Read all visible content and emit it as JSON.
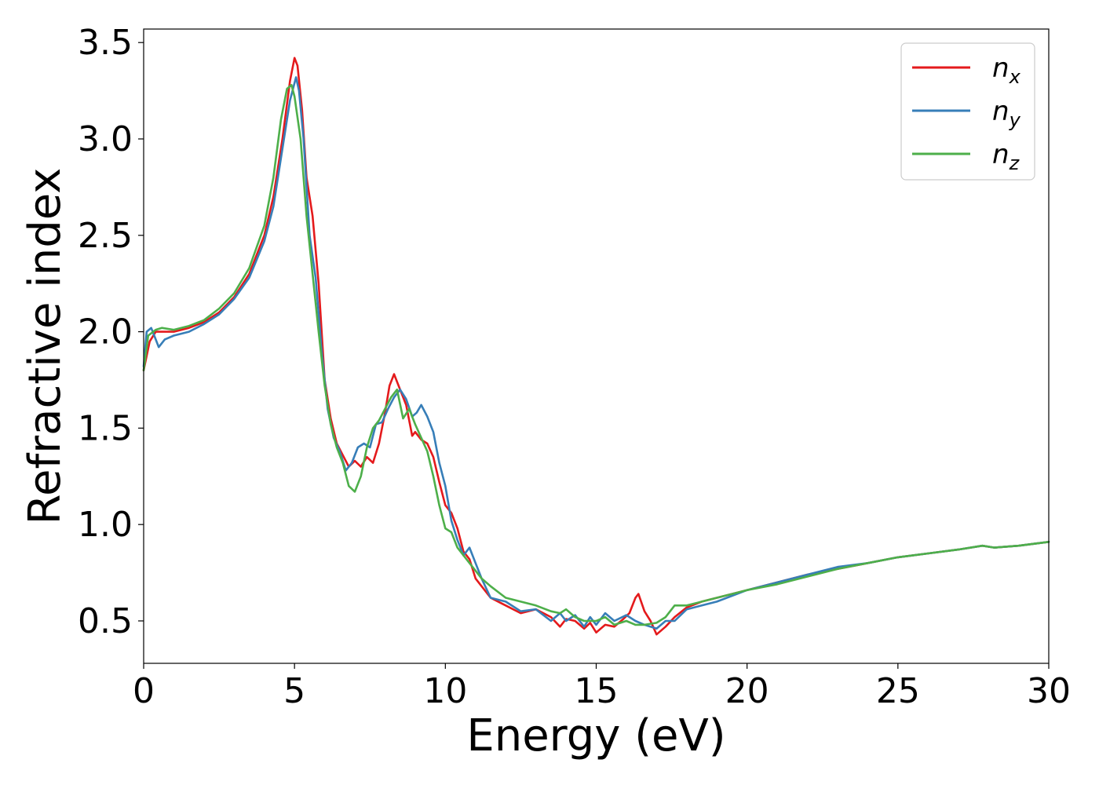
{
  "chart_data": {
    "type": "line",
    "title": "",
    "xlabel": "Energy (eV)",
    "ylabel": "Refractive index",
    "xlim": [
      0,
      30
    ],
    "ylim": [
      0.28,
      3.57
    ],
    "xticks": [
      0,
      5,
      10,
      15,
      20,
      25,
      30
    ],
    "yticks": [
      0.5,
      1.0,
      1.5,
      2.0,
      2.5,
      3.0,
      3.5
    ],
    "xtick_labels": [
      "0",
      "5",
      "10",
      "15",
      "20",
      "25",
      "30"
    ],
    "ytick_labels": [
      "0.5",
      "1.0",
      "1.5",
      "2.0",
      "2.5",
      "3.0",
      "3.5"
    ],
    "grid": false,
    "legend_position": "top-right",
    "series": [
      {
        "name": "n",
        "subscript": "x",
        "color": "#e41a1c",
        "points": [
          [
            0,
            1.8
          ],
          [
            0.2,
            1.95
          ],
          [
            0.4,
            2.0
          ],
          [
            0.6,
            2.0
          ],
          [
            1,
            2.0
          ],
          [
            1.5,
            2.02
          ],
          [
            2,
            2.05
          ],
          [
            2.5,
            2.1
          ],
          [
            3,
            2.18
          ],
          [
            3.5,
            2.3
          ],
          [
            4,
            2.5
          ],
          [
            4.3,
            2.7
          ],
          [
            4.6,
            3.0
          ],
          [
            4.85,
            3.3
          ],
          [
            5.0,
            3.42
          ],
          [
            5.1,
            3.38
          ],
          [
            5.25,
            3.15
          ],
          [
            5.4,
            2.8
          ],
          [
            5.6,
            2.6
          ],
          [
            5.8,
            2.25
          ],
          [
            6.0,
            1.75
          ],
          [
            6.2,
            1.55
          ],
          [
            6.4,
            1.42
          ],
          [
            6.6,
            1.36
          ],
          [
            6.8,
            1.3
          ],
          [
            7.0,
            1.33
          ],
          [
            7.2,
            1.3
          ],
          [
            7.4,
            1.35
          ],
          [
            7.6,
            1.32
          ],
          [
            7.8,
            1.42
          ],
          [
            8.0,
            1.58
          ],
          [
            8.15,
            1.72
          ],
          [
            8.3,
            1.78
          ],
          [
            8.5,
            1.7
          ],
          [
            8.7,
            1.62
          ],
          [
            8.9,
            1.46
          ],
          [
            9.0,
            1.48
          ],
          [
            9.2,
            1.44
          ],
          [
            9.4,
            1.42
          ],
          [
            9.6,
            1.35
          ],
          [
            9.8,
            1.22
          ],
          [
            10.0,
            1.1
          ],
          [
            10.2,
            1.06
          ],
          [
            10.4,
            0.98
          ],
          [
            10.6,
            0.86
          ],
          [
            10.8,
            0.82
          ],
          [
            11.0,
            0.72
          ],
          [
            11.2,
            0.68
          ],
          [
            11.5,
            0.62
          ],
          [
            12.0,
            0.58
          ],
          [
            12.5,
            0.54
          ],
          [
            13.0,
            0.56
          ],
          [
            13.5,
            0.52
          ],
          [
            13.8,
            0.47
          ],
          [
            14.0,
            0.51
          ],
          [
            14.3,
            0.5
          ],
          [
            14.6,
            0.46
          ],
          [
            14.8,
            0.49
          ],
          [
            15.0,
            0.44
          ],
          [
            15.3,
            0.48
          ],
          [
            15.6,
            0.47
          ],
          [
            15.9,
            0.51
          ],
          [
            16.1,
            0.54
          ],
          [
            16.3,
            0.62
          ],
          [
            16.4,
            0.64
          ],
          [
            16.6,
            0.55
          ],
          [
            16.8,
            0.5
          ],
          [
            17.0,
            0.43
          ],
          [
            17.3,
            0.47
          ],
          [
            17.6,
            0.52
          ],
          [
            18.0,
            0.57
          ],
          [
            18.5,
            0.6
          ],
          [
            19.0,
            0.62
          ],
          [
            19.5,
            0.64
          ],
          [
            20.0,
            0.66
          ],
          [
            21.0,
            0.7
          ],
          [
            22.0,
            0.74
          ],
          [
            23.0,
            0.77
          ],
          [
            24.0,
            0.8
          ],
          [
            25.0,
            0.83
          ],
          [
            26.0,
            0.85
          ],
          [
            27.0,
            0.87
          ],
          [
            27.8,
            0.89
          ],
          [
            28.2,
            0.88
          ],
          [
            29.0,
            0.89
          ],
          [
            30.0,
            0.91
          ]
        ]
      },
      {
        "name": "n",
        "subscript": "y",
        "color": "#377eb8",
        "points": [
          [
            0,
            1.82
          ],
          [
            0.1,
            2.0
          ],
          [
            0.25,
            2.02
          ],
          [
            0.4,
            1.96
          ],
          [
            0.5,
            1.92
          ],
          [
            0.7,
            1.96
          ],
          [
            1,
            1.98
          ],
          [
            1.5,
            2.0
          ],
          [
            2,
            2.04
          ],
          [
            2.5,
            2.09
          ],
          [
            3,
            2.17
          ],
          [
            3.5,
            2.28
          ],
          [
            4,
            2.47
          ],
          [
            4.3,
            2.65
          ],
          [
            4.6,
            2.95
          ],
          [
            4.85,
            3.2
          ],
          [
            5.05,
            3.32
          ],
          [
            5.15,
            3.25
          ],
          [
            5.3,
            3.0
          ],
          [
            5.5,
            2.5
          ],
          [
            5.7,
            2.28
          ],
          [
            5.9,
            1.9
          ],
          [
            6.1,
            1.6
          ],
          [
            6.3,
            1.45
          ],
          [
            6.5,
            1.38
          ],
          [
            6.7,
            1.28
          ],
          [
            6.9,
            1.32
          ],
          [
            7.1,
            1.4
          ],
          [
            7.3,
            1.42
          ],
          [
            7.5,
            1.4
          ],
          [
            7.7,
            1.52
          ],
          [
            7.9,
            1.53
          ],
          [
            8.1,
            1.6
          ],
          [
            8.3,
            1.66
          ],
          [
            8.5,
            1.7
          ],
          [
            8.7,
            1.65
          ],
          [
            8.9,
            1.56
          ],
          [
            9.05,
            1.58
          ],
          [
            9.2,
            1.62
          ],
          [
            9.4,
            1.56
          ],
          [
            9.6,
            1.48
          ],
          [
            9.8,
            1.32
          ],
          [
            10.0,
            1.2
          ],
          [
            10.2,
            1.02
          ],
          [
            10.4,
            0.92
          ],
          [
            10.6,
            0.84
          ],
          [
            10.8,
            0.88
          ],
          [
            11.0,
            0.8
          ],
          [
            11.2,
            0.72
          ],
          [
            11.5,
            0.62
          ],
          [
            12.0,
            0.6
          ],
          [
            12.5,
            0.55
          ],
          [
            13.0,
            0.56
          ],
          [
            13.5,
            0.5
          ],
          [
            13.8,
            0.54
          ],
          [
            14.0,
            0.5
          ],
          [
            14.3,
            0.53
          ],
          [
            14.6,
            0.47
          ],
          [
            14.8,
            0.52
          ],
          [
            15.0,
            0.48
          ],
          [
            15.3,
            0.54
          ],
          [
            15.6,
            0.5
          ],
          [
            16.0,
            0.53
          ],
          [
            16.3,
            0.5
          ],
          [
            16.6,
            0.48
          ],
          [
            17.0,
            0.46
          ],
          [
            17.3,
            0.5
          ],
          [
            17.6,
            0.5
          ],
          [
            18.0,
            0.56
          ],
          [
            18.5,
            0.58
          ],
          [
            19.0,
            0.6
          ],
          [
            19.5,
            0.63
          ],
          [
            20.0,
            0.66
          ],
          [
            21.0,
            0.7
          ],
          [
            22.0,
            0.74
          ],
          [
            23.0,
            0.78
          ],
          [
            24.0,
            0.8
          ],
          [
            25.0,
            0.83
          ],
          [
            26.0,
            0.85
          ],
          [
            27.0,
            0.87
          ],
          [
            27.8,
            0.89
          ],
          [
            28.2,
            0.88
          ],
          [
            29.0,
            0.89
          ],
          [
            30.0,
            0.91
          ]
        ]
      },
      {
        "name": "n",
        "subscript": "z",
        "color": "#4daf4a",
        "points": [
          [
            0,
            1.8
          ],
          [
            0.15,
            1.98
          ],
          [
            0.4,
            2.01
          ],
          [
            0.6,
            2.02
          ],
          [
            1,
            2.01
          ],
          [
            1.5,
            2.03
          ],
          [
            2,
            2.06
          ],
          [
            2.5,
            2.12
          ],
          [
            3,
            2.2
          ],
          [
            3.5,
            2.33
          ],
          [
            4,
            2.55
          ],
          [
            4.3,
            2.8
          ],
          [
            4.55,
            3.1
          ],
          [
            4.75,
            3.26
          ],
          [
            4.9,
            3.28
          ],
          [
            5.0,
            3.22
          ],
          [
            5.2,
            3.0
          ],
          [
            5.4,
            2.6
          ],
          [
            5.6,
            2.3
          ],
          [
            5.8,
            2.0
          ],
          [
            6.0,
            1.72
          ],
          [
            6.2,
            1.52
          ],
          [
            6.4,
            1.4
          ],
          [
            6.6,
            1.32
          ],
          [
            6.8,
            1.2
          ],
          [
            7.0,
            1.17
          ],
          [
            7.2,
            1.25
          ],
          [
            7.4,
            1.4
          ],
          [
            7.6,
            1.5
          ],
          [
            7.8,
            1.54
          ],
          [
            8.0,
            1.6
          ],
          [
            8.2,
            1.66
          ],
          [
            8.4,
            1.7
          ],
          [
            8.6,
            1.55
          ],
          [
            8.8,
            1.6
          ],
          [
            9.0,
            1.52
          ],
          [
            9.2,
            1.45
          ],
          [
            9.4,
            1.38
          ],
          [
            9.6,
            1.25
          ],
          [
            9.8,
            1.1
          ],
          [
            10.0,
            0.98
          ],
          [
            10.2,
            0.96
          ],
          [
            10.4,
            0.88
          ],
          [
            10.6,
            0.84
          ],
          [
            10.8,
            0.8
          ],
          [
            11.0,
            0.76
          ],
          [
            11.2,
            0.72
          ],
          [
            11.5,
            0.68
          ],
          [
            12.0,
            0.62
          ],
          [
            12.5,
            0.6
          ],
          [
            13.0,
            0.58
          ],
          [
            13.5,
            0.55
          ],
          [
            13.8,
            0.54
          ],
          [
            14.0,
            0.56
          ],
          [
            14.3,
            0.52
          ],
          [
            14.6,
            0.5
          ],
          [
            14.8,
            0.5
          ],
          [
            15.0,
            0.5
          ],
          [
            15.3,
            0.52
          ],
          [
            15.6,
            0.48
          ],
          [
            16.0,
            0.5
          ],
          [
            16.3,
            0.48
          ],
          [
            16.6,
            0.48
          ],
          [
            17.0,
            0.49
          ],
          [
            17.3,
            0.52
          ],
          [
            17.6,
            0.58
          ],
          [
            18.0,
            0.58
          ],
          [
            18.5,
            0.6
          ],
          [
            19.0,
            0.62
          ],
          [
            19.5,
            0.64
          ],
          [
            20.0,
            0.66
          ],
          [
            21.0,
            0.69
          ],
          [
            22.0,
            0.73
          ],
          [
            23.0,
            0.77
          ],
          [
            24.0,
            0.8
          ],
          [
            25.0,
            0.83
          ],
          [
            26.0,
            0.85
          ],
          [
            27.0,
            0.87
          ],
          [
            27.8,
            0.89
          ],
          [
            28.2,
            0.88
          ],
          [
            29.0,
            0.89
          ],
          [
            30.0,
            0.91
          ]
        ]
      }
    ]
  }
}
